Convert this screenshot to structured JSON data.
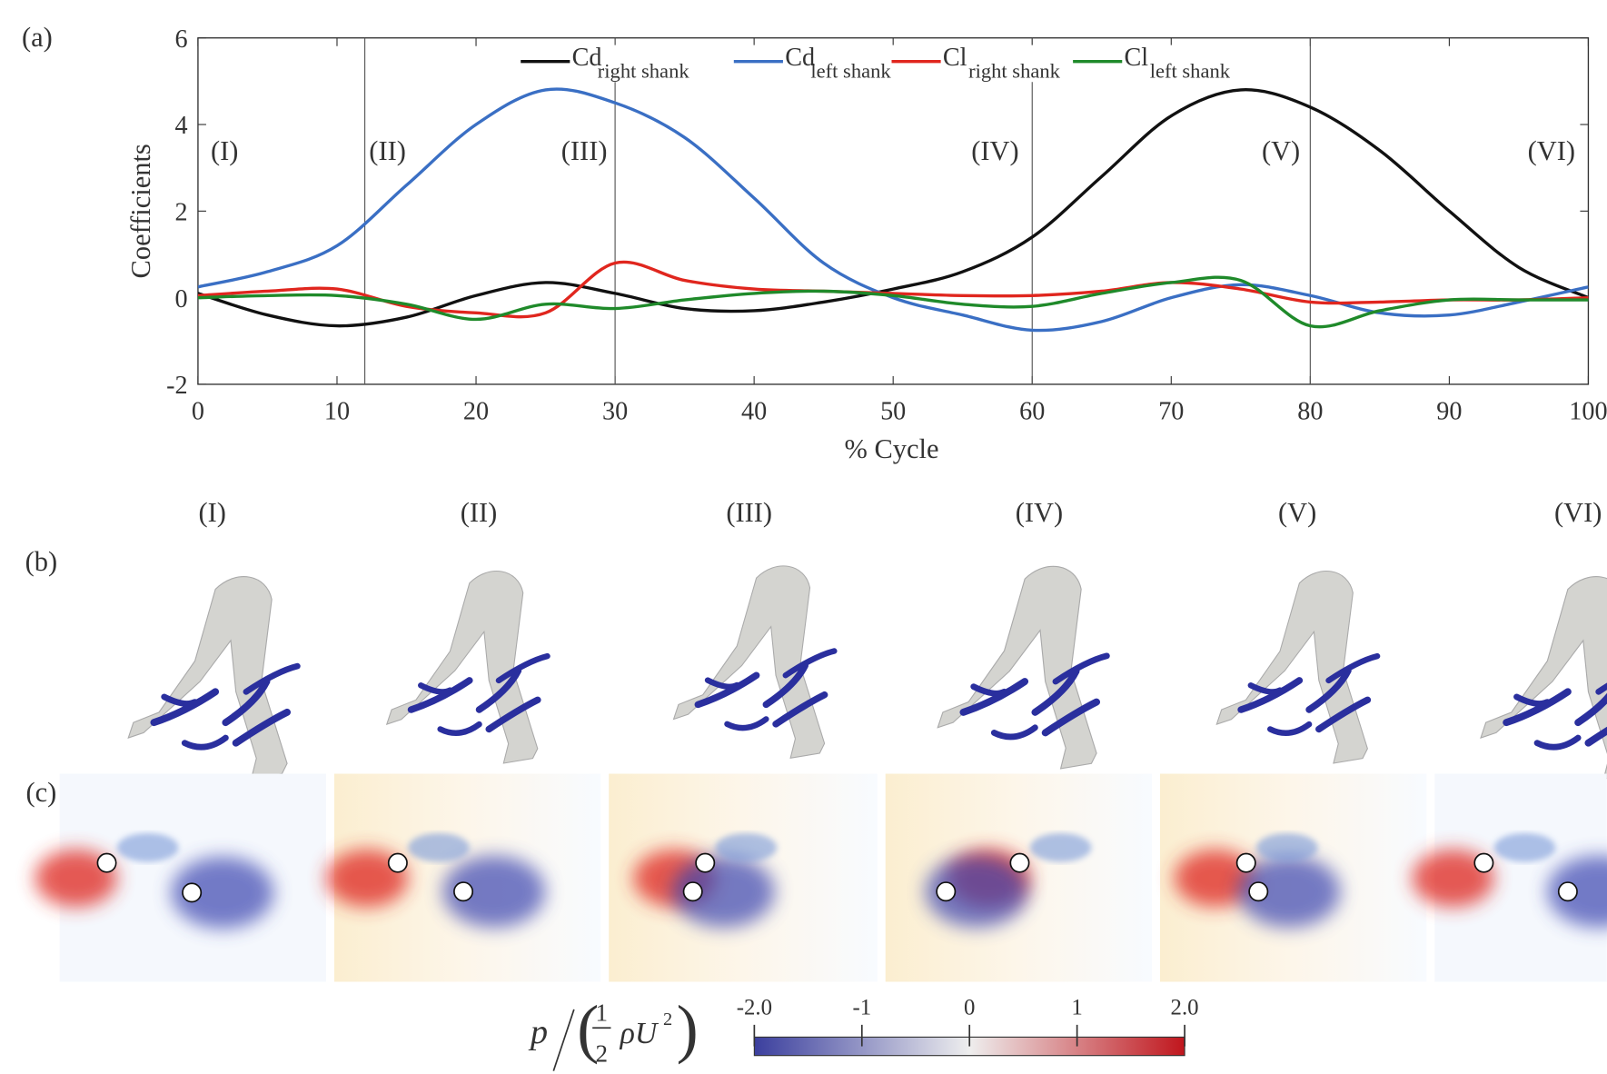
{
  "chart_data": {
    "type": "line",
    "panel_labels": [
      "(a)",
      "(b)",
      "(c)"
    ],
    "xlabel": "% Cycle",
    "ylabel": "Coefficients",
    "xlim": [
      0,
      100
    ],
    "xticks": [
      0,
      10,
      20,
      30,
      40,
      50,
      60,
      70,
      80,
      90,
      100
    ],
    "ylim": [
      -2,
      6
    ],
    "yticks": [
      -2,
      0,
      2,
      4,
      6
    ],
    "phase_lines": [
      12,
      30,
      60,
      80
    ],
    "phases": [
      "(I)",
      "(II)",
      "(III)",
      "(IV)",
      "(V)",
      "(VI)"
    ],
    "x": [
      0,
      5,
      10,
      15,
      20,
      25,
      30,
      35,
      40,
      45,
      50,
      55,
      60,
      65,
      70,
      75,
      80,
      85,
      90,
      95,
      100
    ],
    "series": [
      {
        "name": "Cd",
        "subscript": "right shank",
        "color": "#111111",
        "values": [
          0.1,
          -0.4,
          -0.65,
          -0.45,
          0.05,
          0.35,
          0.1,
          -0.25,
          -0.3,
          -0.1,
          0.2,
          0.6,
          1.4,
          2.8,
          4.2,
          4.8,
          4.4,
          3.4,
          2.0,
          0.7,
          0.0
        ]
      },
      {
        "name": "Cd",
        "subscript": "left shank",
        "color": "#3a6fc4",
        "values": [
          0.25,
          0.6,
          1.2,
          2.6,
          4.0,
          4.8,
          4.5,
          3.7,
          2.3,
          0.8,
          0.0,
          -0.4,
          -0.75,
          -0.55,
          0.0,
          0.3,
          0.05,
          -0.35,
          -0.4,
          -0.1,
          0.25
        ]
      },
      {
        "name": "Cl",
        "subscript": "right shank",
        "color": "#e0261e",
        "values": [
          0.05,
          0.15,
          0.2,
          -0.2,
          -0.35,
          -0.35,
          0.8,
          0.4,
          0.2,
          0.15,
          0.1,
          0.05,
          0.05,
          0.15,
          0.35,
          0.2,
          -0.1,
          -0.1,
          -0.05,
          -0.05,
          0.0
        ]
      },
      {
        "name": "Cl",
        "subscript": "left shank",
        "color": "#1f8a2a",
        "values": [
          0.0,
          0.05,
          0.05,
          -0.15,
          -0.5,
          -0.15,
          -0.25,
          -0.05,
          0.1,
          0.15,
          0.05,
          -0.15,
          -0.2,
          0.1,
          0.35,
          0.4,
          -0.65,
          -0.3,
          -0.05,
          -0.05,
          -0.05
        ]
      }
    ],
    "colorbar": {
      "label_num": "p",
      "frac_top": "1",
      "frac_bottom": "2",
      "label_rest": "ρU",
      "label_exp": "2",
      "clim": [
        -2,
        2
      ],
      "ticks": [
        {
          "value": -2,
          "label": "-2.0"
        },
        -1,
        0,
        1,
        {
          "value": 2,
          "label": "2.0"
        }
      ]
    }
  }
}
